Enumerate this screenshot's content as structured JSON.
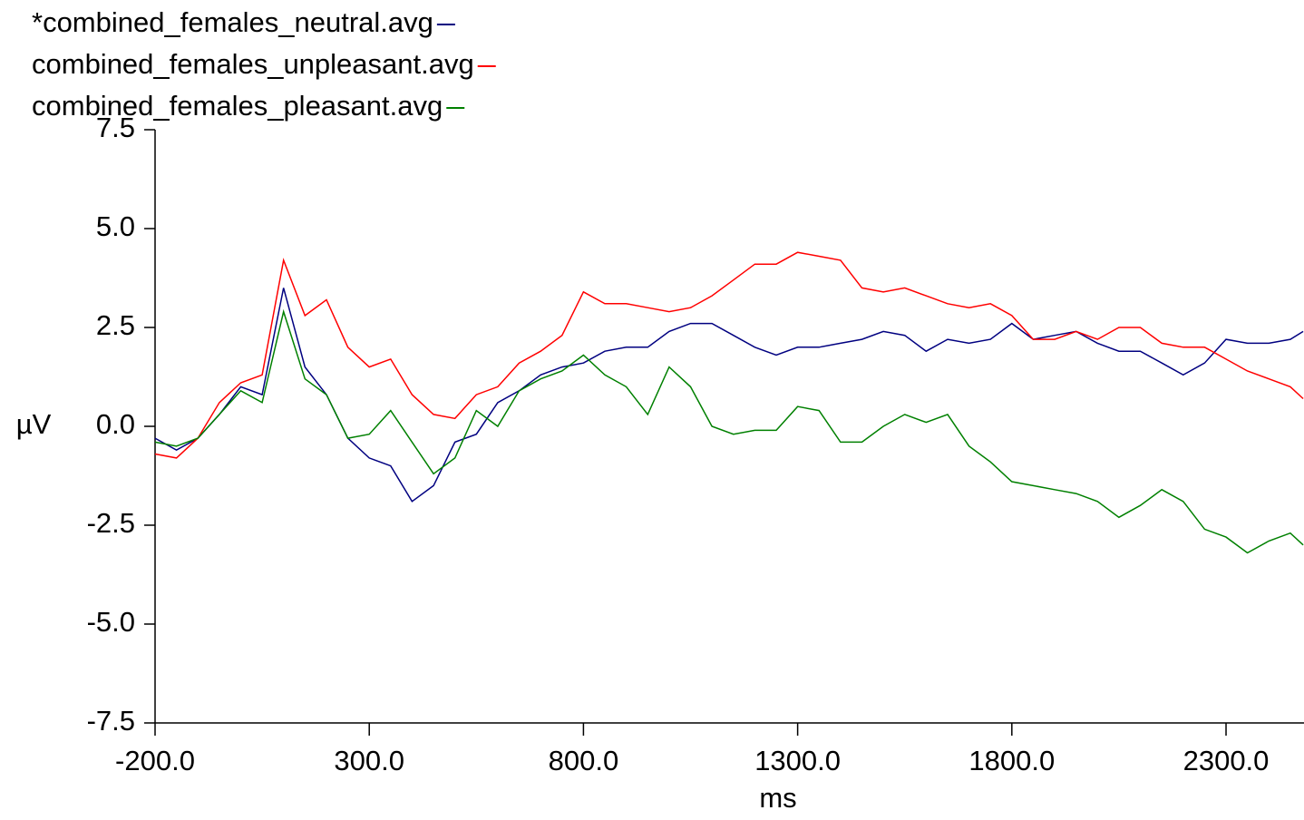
{
  "chart_data": {
    "type": "line",
    "x_label": "ms",
    "y_label": "µV",
    "x": [
      -200,
      -150,
      -100,
      -50,
      0,
      50,
      100,
      150,
      200,
      250,
      300,
      350,
      400,
      450,
      500,
      550,
      600,
      650,
      700,
      750,
      800,
      850,
      900,
      950,
      1000,
      1050,
      1100,
      1150,
      1200,
      1250,
      1300,
      1350,
      1400,
      1450,
      1500,
      1550,
      1600,
      1650,
      1700,
      1750,
      1800,
      1850,
      1900,
      1950,
      2000,
      2050,
      2100,
      2150,
      2200,
      2250,
      2300,
      2350,
      2400,
      2450,
      2480
    ],
    "series": [
      {
        "name": "*combined_females_neutral.avg",
        "color": "#000080",
        "values": [
          -0.3,
          -0.6,
          -0.3,
          0.3,
          1.0,
          0.8,
          3.5,
          1.5,
          0.8,
          -0.3,
          -0.8,
          -1.0,
          -1.9,
          -1.5,
          -0.4,
          -0.2,
          0.6,
          0.9,
          1.3,
          1.5,
          1.6,
          1.9,
          2.0,
          2.0,
          2.4,
          2.6,
          2.6,
          2.3,
          2.0,
          1.8,
          2.0,
          2.0,
          2.1,
          2.2,
          2.4,
          2.3,
          1.9,
          2.2,
          2.1,
          2.2,
          2.6,
          2.2,
          2.3,
          2.4,
          2.1,
          1.9,
          1.9,
          1.6,
          1.3,
          1.6,
          2.2,
          2.1,
          2.1,
          2.2,
          2.4
        ]
      },
      {
        "name": "combined_females_unpleasant.avg",
        "color": "#ff0000",
        "values": [
          -0.7,
          -0.8,
          -0.3,
          0.6,
          1.1,
          1.3,
          4.2,
          2.8,
          3.2,
          2.0,
          1.5,
          1.7,
          0.8,
          0.3,
          0.2,
          0.8,
          1.0,
          1.6,
          1.9,
          2.3,
          3.4,
          3.1,
          3.1,
          3.0,
          2.9,
          3.0,
          3.3,
          3.7,
          4.1,
          4.1,
          4.4,
          4.3,
          4.2,
          3.5,
          3.4,
          3.5,
          3.3,
          3.1,
          3.0,
          3.1,
          2.8,
          2.2,
          2.2,
          2.4,
          2.2,
          2.5,
          2.5,
          2.1,
          2.0,
          2.0,
          1.7,
          1.4,
          1.2,
          1.0,
          0.7
        ]
      },
      {
        "name": "combined_females_pleasant.avg",
        "color": "#008000",
        "values": [
          -0.4,
          -0.5,
          -0.3,
          0.3,
          0.9,
          0.6,
          2.9,
          1.2,
          0.8,
          -0.3,
          -0.2,
          0.4,
          -0.4,
          -1.2,
          -0.8,
          0.4,
          0.0,
          0.9,
          1.2,
          1.4,
          1.8,
          1.3,
          1.0,
          0.3,
          1.5,
          1.0,
          0.0,
          -0.2,
          -0.1,
          -0.1,
          0.5,
          0.4,
          -0.4,
          -0.4,
          0.0,
          0.3,
          0.1,
          0.3,
          -0.5,
          -0.9,
          -1.4,
          -1.5,
          -1.6,
          -1.7,
          -1.9,
          -2.3,
          -2.0,
          -1.6,
          -1.9,
          -2.6,
          -2.8,
          -3.2,
          -2.9,
          -2.7,
          -3.0
        ]
      }
    ],
    "xlim": [
      -200,
      2482
    ],
    "xticks": [
      {
        "value": -200,
        "label": "-200.0"
      },
      {
        "value": 300,
        "label": "300.0"
      },
      {
        "value": 800,
        "label": "800.0"
      },
      {
        "value": 1300,
        "label": "1300.0"
      },
      {
        "value": 1800,
        "label": "1800.0"
      },
      {
        "value": 2300,
        "label": "2300.0"
      }
    ],
    "ylim": [
      -7.5,
      7.5
    ],
    "yticks": [
      -7.5,
      {
        "value": -5,
        "label": "-5.0"
      },
      -2.5,
      {
        "value": 0,
        "label": "0.0"
      },
      2.5,
      {
        "value": 5,
        "label": "5.0"
      },
      7.5
    ]
  }
}
